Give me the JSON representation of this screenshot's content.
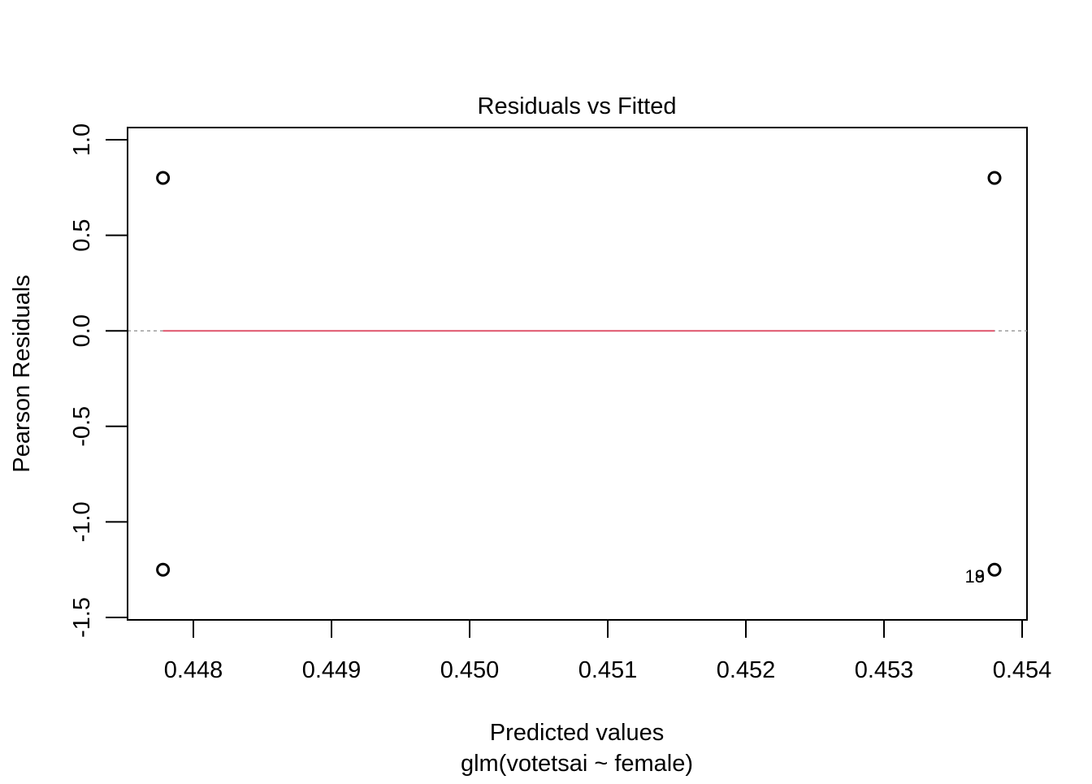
{
  "chart_data": {
    "type": "scatter",
    "title": "Residuals vs Fitted",
    "xlabel": "Predicted values",
    "sublabel": "glm(votetsai ~ female)",
    "ylabel": "Pearson Residuals",
    "xlim": [
      0.44755,
      0.454
    ],
    "ylim": [
      -1.5,
      1.0
    ],
    "x_ticks": [
      "0.448",
      "0.449",
      "0.450",
      "0.451",
      "0.452",
      "0.453",
      "0.454"
    ],
    "y_ticks": [
      "-1.5",
      "-1.0",
      "-0.5",
      "0.0",
      "0.5",
      "1.0"
    ],
    "points": [
      {
        "x": 0.44778,
        "y": 0.8
      },
      {
        "x": 0.44778,
        "y": -1.25
      },
      {
        "x": 0.4538,
        "y": 0.8
      },
      {
        "x": 0.4538,
        "y": -1.25
      }
    ],
    "point_labels": [
      {
        "x": 0.4538,
        "y": -1.25,
        "text": "18"
      },
      {
        "x": 0.4538,
        "y": -1.25,
        "text": "9"
      }
    ],
    "reference_line": {
      "y": 0.0,
      "color": "#9e9e9e",
      "style": "dashed"
    },
    "smooth_line": {
      "x": [
        0.44778,
        0.4538
      ],
      "y": [
        0.0,
        0.0
      ],
      "color": "#df536b"
    },
    "grid": false
  }
}
